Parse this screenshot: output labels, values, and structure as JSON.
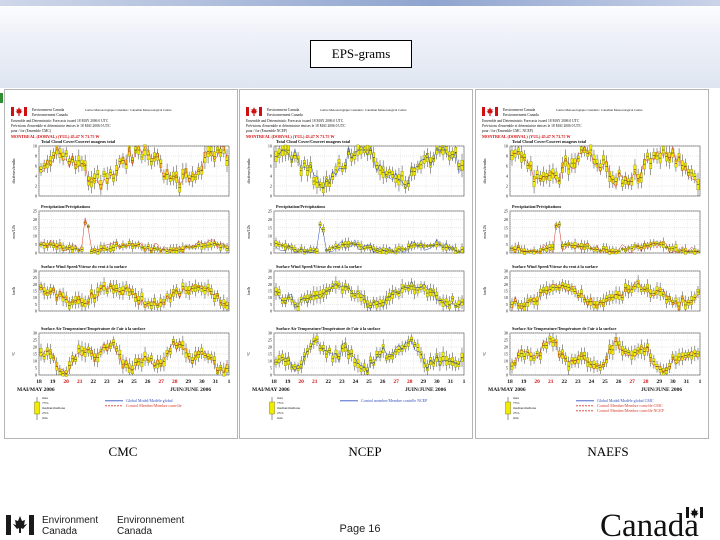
{
  "slide": {
    "title": "EPS-grams",
    "page": "Page 16"
  },
  "panels": [
    {
      "label": "CMC",
      "header": {
        "org_en": "Environment Canada",
        "org_fr": "Environnement Canada",
        "centre": "Centre Meteorologique Canadien / Canadian Meteorological Centre",
        "line1": "Ensemble and Deterministic Forecasts issued 18 MAY 2006 0 UTC",
        "line2": "Prévisions d'ensemble et déterministe émises le 18 MAI 2006 0 UTC",
        "line3": "pour / for (Ensemble CMC)",
        "station": "MONTREAL (DORVAL) (YUL) 45.47 N 73.75 W"
      },
      "subplots": [
        {
          "title": "Total Cloud Cover/Couvert nuageux total",
          "ylabel": "dixièmes/tenths",
          "yticks": [
            "0",
            "2",
            "4",
            "6",
            "8",
            "10"
          ]
        },
        {
          "title": "Precipitation/Précipitations",
          "ylabel": "mm/12h",
          "yticks": [
            "0",
            "5",
            "10",
            "15",
            "20",
            "25"
          ]
        },
        {
          "title": "Surface Wind Speed/Vitesse du vent à la surface",
          "ylabel": "km/h",
          "yticks": [
            "0",
            "5",
            "10",
            "15",
            "20",
            "25",
            "30"
          ]
        },
        {
          "title": "Surface Air Temperature/Température de l'air à la surface",
          "ylabel": "°C",
          "yticks": [
            "0",
            "5",
            "10",
            "15",
            "20",
            "25",
            "30"
          ]
        }
      ],
      "dates": [
        "18",
        "19",
        "20",
        "21",
        "22",
        "23",
        "24",
        "25",
        "26",
        "27",
        "28",
        "29",
        "30",
        "31",
        "1"
      ],
      "month_left": "MAI/MAY 2006",
      "month_right": "JUIN/JUNE 2006",
      "legend_left": [
        "max",
        "75%",
        "median/médiane",
        "25%",
        "min"
      ],
      "legend_right": [
        "Global Model/Modèle global",
        "Control Member/Membre contrôle"
      ]
    },
    {
      "label": "NCEP",
      "header": {
        "org_en": "Environment Canada",
        "org_fr": "Environnement Canada",
        "centre": "Centre Meteorologique Canadien / Canadian Meteorological Centre",
        "line1": "Ensemble and Deterministic Forecasts issued 18 MAY 2006 0 UTC",
        "line2": "Prévisions d'ensemble et déterministe émises le 18 MAI 2006 0 UTC",
        "line3": "pour / for (Ensemble NCEP)",
        "station": "MONTREAL (DORVAL) (YUL) 45.47 N 73.75 W"
      },
      "subplots": [
        {
          "title": "Total Cloud Cover/Couvert nuageux total",
          "ylabel": "dixièmes/tenths",
          "yticks": [
            "0",
            "2",
            "4",
            "6",
            "8",
            "10"
          ]
        },
        {
          "title": "Precipitation/Précipitations",
          "ylabel": "mm/12h",
          "yticks": [
            "0",
            "5",
            "10",
            "15",
            "20",
            "25"
          ]
        },
        {
          "title": "Surface Wind Speed/Vitesse du vent à la surface",
          "ylabel": "km/h",
          "yticks": [
            "0",
            "5",
            "10",
            "15",
            "20",
            "25",
            "30"
          ]
        },
        {
          "title": "Surface Air Temperature/Température de l'air à la surface",
          "ylabel": "°C",
          "yticks": [
            "0",
            "5",
            "10",
            "15",
            "20",
            "25",
            "30"
          ]
        }
      ],
      "dates": [
        "18",
        "19",
        "20",
        "21",
        "22",
        "23",
        "24",
        "25",
        "26",
        "27",
        "28",
        "29",
        "30",
        "31",
        "1"
      ],
      "month_left": "MAI/MAY 2006",
      "month_right": "JUIN/JUNE 2006",
      "legend_left": [
        "max",
        "75%",
        "median/médiane",
        "25%",
        "min"
      ],
      "legend_right": [
        "Control member/Membre contrôle NCEP"
      ]
    },
    {
      "label": "NAEFS",
      "header": {
        "org_en": "Environment Canada",
        "org_fr": "Environnement Canada",
        "centre": "Centre Meteorologique Canadien / Canadian Meteorological Centre",
        "line1": "Ensemble and Deterministic Forecasts issued 18 MAY 2006 0 UTC",
        "line2": "Prévisions d'ensemble et déterministe émises le 18 MAI 2006 0 UTC",
        "line3": "pour / for (Ensemble CMC, NCEP)",
        "station": "MONTREAL (DORVAL) (YUL) 45.47 N 73.75 W"
      },
      "subplots": [
        {
          "title": "Total Cloud Cover/Couvert nuageux total",
          "ylabel": "dixièmes/tenths",
          "yticks": [
            "0",
            "2",
            "4",
            "6",
            "8",
            "10"
          ]
        },
        {
          "title": "Precipitation/Précipitations",
          "ylabel": "mm/12h",
          "yticks": [
            "0",
            "5",
            "10",
            "15",
            "20",
            "25"
          ]
        },
        {
          "title": "Surface Wind Speed/Vitesse du vent à la surface",
          "ylabel": "km/h",
          "yticks": [
            "0",
            "5",
            "10",
            "15",
            "20",
            "25",
            "30"
          ]
        },
        {
          "title": "Surface Air Temperature/Température de l'air à la surface",
          "ylabel": "°C",
          "yticks": [
            "0",
            "5",
            "10",
            "15",
            "20",
            "25",
            "30"
          ]
        }
      ],
      "dates": [
        "18",
        "19",
        "20",
        "21",
        "22",
        "23",
        "24",
        "25",
        "26",
        "27",
        "28",
        "29",
        "30",
        "31",
        "1"
      ],
      "month_left": "MAI/MAY 2006",
      "month_right": "JUIN/JUNE 2006",
      "legend_left": [
        "max",
        "75%",
        "median/médiane",
        "25%",
        "min"
      ],
      "legend_right": [
        "Global Model/Modèle global CMC",
        "Control Member/Membre contrôle CMC",
        "Control Member/Membre contrôle NCEP"
      ]
    }
  ],
  "footer": {
    "org_en_1": "Environment",
    "org_en_2": "Canada",
    "org_fr_1": "Environnement",
    "org_fr_2": "Canada",
    "wordmark": "Canada"
  },
  "colors": {
    "box_fill": "#f2ea00",
    "box_edge": "#6b6b00",
    "median": "#222222",
    "cmc": "#d83a2a",
    "ncep": "#3050c0",
    "header_title": "#d01010"
  }
}
